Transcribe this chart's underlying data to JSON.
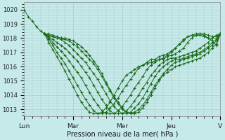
{
  "xlabel": "Pression niveau de la mer( hPa )",
  "xtick_labels": [
    "Lun",
    "Mar",
    "Mer",
    "Jeu",
    "V"
  ],
  "ytick_labels": [
    1013,
    1014,
    1015,
    1016,
    1017,
    1018,
    1019,
    1020
  ],
  "ylim": [
    1012.5,
    1020.5
  ],
  "xlim": [
    0,
    192
  ],
  "bg_color": "#c6eaea",
  "grid_color": "#a8cccc",
  "line_color": "#1a6b1a",
  "marker_color": "#1a6b1a",
  "xtick_positions": [
    0,
    48,
    96,
    144,
    192
  ],
  "series": [
    {
      "points": [
        [
          0,
          1020.0
        ],
        [
          4,
          1019.5
        ],
        [
          8,
          1019.2
        ],
        [
          12,
          1018.8
        ],
        [
          16,
          1018.5
        ],
        [
          20,
          1018.3
        ],
        [
          24,
          1018.2
        ],
        [
          28,
          1018.1
        ],
        [
          32,
          1018.0
        ],
        [
          36,
          1018.0
        ],
        [
          40,
          1018.0
        ],
        [
          44,
          1017.9
        ],
        [
          48,
          1017.8
        ],
        [
          52,
          1017.6
        ],
        [
          56,
          1017.4
        ],
        [
          60,
          1017.1
        ],
        [
          64,
          1016.8
        ],
        [
          68,
          1016.4
        ],
        [
          72,
          1016.0
        ],
        [
          76,
          1015.5
        ],
        [
          80,
          1014.9
        ],
        [
          84,
          1014.4
        ],
        [
          88,
          1013.9
        ],
        [
          92,
          1013.5
        ],
        [
          96,
          1013.1
        ],
        [
          100,
          1012.8
        ],
        [
          104,
          1012.7
        ],
        [
          108,
          1012.7
        ],
        [
          112,
          1012.8
        ],
        [
          116,
          1013.1
        ],
        [
          120,
          1013.5
        ],
        [
          124,
          1014.0
        ],
        [
          128,
          1014.5
        ],
        [
          132,
          1015.0
        ],
        [
          136,
          1015.4
        ],
        [
          140,
          1015.6
        ],
        [
          144,
          1015.8
        ],
        [
          148,
          1016.0
        ],
        [
          152,
          1016.1
        ],
        [
          156,
          1016.2
        ],
        [
          160,
          1016.3
        ],
        [
          164,
          1016.4
        ],
        [
          168,
          1016.5
        ],
        [
          172,
          1016.6
        ],
        [
          176,
          1016.8
        ],
        [
          180,
          1017.0
        ],
        [
          184,
          1017.3
        ],
        [
          188,
          1017.6
        ],
        [
          192,
          1018.3
        ]
      ]
    },
    {
      "points": [
        [
          20,
          1018.3
        ],
        [
          24,
          1018.3
        ],
        [
          28,
          1018.2
        ],
        [
          32,
          1018.1
        ],
        [
          36,
          1018.0
        ],
        [
          40,
          1017.9
        ],
        [
          44,
          1017.8
        ],
        [
          48,
          1017.6
        ],
        [
          52,
          1017.4
        ],
        [
          56,
          1017.1
        ],
        [
          60,
          1016.8
        ],
        [
          64,
          1016.5
        ],
        [
          68,
          1016.2
        ],
        [
          72,
          1015.8
        ],
        [
          76,
          1015.3
        ],
        [
          80,
          1014.8
        ],
        [
          84,
          1014.3
        ],
        [
          88,
          1013.8
        ],
        [
          92,
          1013.4
        ],
        [
          96,
          1013.0
        ],
        [
          100,
          1012.8
        ],
        [
          104,
          1012.7
        ],
        [
          108,
          1012.8
        ],
        [
          112,
          1013.0
        ],
        [
          116,
          1013.3
        ],
        [
          120,
          1013.7
        ],
        [
          124,
          1014.2
        ],
        [
          128,
          1014.7
        ],
        [
          132,
          1015.1
        ],
        [
          136,
          1015.5
        ],
        [
          140,
          1015.8
        ],
        [
          144,
          1016.1
        ],
        [
          148,
          1016.3
        ],
        [
          152,
          1016.4
        ],
        [
          156,
          1016.5
        ],
        [
          160,
          1016.6
        ],
        [
          164,
          1016.7
        ],
        [
          168,
          1016.8
        ],
        [
          172,
          1016.9
        ],
        [
          176,
          1017.1
        ],
        [
          180,
          1017.3
        ],
        [
          184,
          1017.5
        ],
        [
          188,
          1017.8
        ],
        [
          192,
          1018.3
        ]
      ]
    },
    {
      "points": [
        [
          20,
          1018.3
        ],
        [
          24,
          1018.2
        ],
        [
          28,
          1018.1
        ],
        [
          32,
          1018.0
        ],
        [
          36,
          1017.9
        ],
        [
          40,
          1017.7
        ],
        [
          44,
          1017.5
        ],
        [
          48,
          1017.2
        ],
        [
          52,
          1016.9
        ],
        [
          56,
          1016.6
        ],
        [
          60,
          1016.3
        ],
        [
          64,
          1015.9
        ],
        [
          68,
          1015.5
        ],
        [
          72,
          1015.1
        ],
        [
          76,
          1014.6
        ],
        [
          80,
          1014.1
        ],
        [
          84,
          1013.6
        ],
        [
          88,
          1013.2
        ],
        [
          92,
          1012.9
        ],
        [
          96,
          1012.7
        ],
        [
          100,
          1012.7
        ],
        [
          104,
          1012.8
        ],
        [
          108,
          1013.1
        ],
        [
          112,
          1013.4
        ],
        [
          116,
          1013.8
        ],
        [
          120,
          1014.3
        ],
        [
          124,
          1014.8
        ],
        [
          128,
          1015.3
        ],
        [
          132,
          1015.7
        ],
        [
          136,
          1016.0
        ],
        [
          140,
          1016.2
        ],
        [
          144,
          1016.4
        ],
        [
          148,
          1016.5
        ],
        [
          152,
          1016.5
        ],
        [
          156,
          1016.6
        ],
        [
          160,
          1016.7
        ],
        [
          164,
          1016.8
        ],
        [
          168,
          1016.9
        ],
        [
          172,
          1017.0
        ],
        [
          176,
          1017.2
        ],
        [
          180,
          1017.4
        ],
        [
          184,
          1017.7
        ],
        [
          188,
          1017.9
        ],
        [
          192,
          1018.3
        ]
      ]
    },
    {
      "points": [
        [
          20,
          1018.3
        ],
        [
          24,
          1018.1
        ],
        [
          28,
          1017.9
        ],
        [
          32,
          1017.7
        ],
        [
          36,
          1017.5
        ],
        [
          40,
          1017.3
        ],
        [
          44,
          1017.0
        ],
        [
          48,
          1016.7
        ],
        [
          52,
          1016.4
        ],
        [
          56,
          1016.0
        ],
        [
          60,
          1015.6
        ],
        [
          64,
          1015.2
        ],
        [
          68,
          1014.7
        ],
        [
          72,
          1014.2
        ],
        [
          76,
          1013.7
        ],
        [
          80,
          1013.3
        ],
        [
          84,
          1012.9
        ],
        [
          88,
          1012.7
        ],
        [
          92,
          1012.7
        ],
        [
          96,
          1012.7
        ],
        [
          100,
          1012.9
        ],
        [
          104,
          1013.2
        ],
        [
          108,
          1013.6
        ],
        [
          112,
          1014.0
        ],
        [
          116,
          1014.5
        ],
        [
          120,
          1014.9
        ],
        [
          124,
          1015.4
        ],
        [
          128,
          1015.7
        ],
        [
          132,
          1016.1
        ],
        [
          136,
          1016.3
        ],
        [
          140,
          1016.5
        ],
        [
          144,
          1016.6
        ],
        [
          148,
          1016.6
        ],
        [
          152,
          1016.7
        ],
        [
          156,
          1016.8
        ],
        [
          160,
          1016.9
        ],
        [
          164,
          1017.0
        ],
        [
          168,
          1017.1
        ],
        [
          172,
          1017.3
        ],
        [
          176,
          1017.5
        ],
        [
          180,
          1017.7
        ],
        [
          184,
          1018.0
        ],
        [
          188,
          1018.2
        ],
        [
          192,
          1018.3
        ]
      ]
    },
    {
      "points": [
        [
          20,
          1018.3
        ],
        [
          24,
          1018.0
        ],
        [
          28,
          1017.7
        ],
        [
          32,
          1017.4
        ],
        [
          36,
          1017.1
        ],
        [
          40,
          1016.8
        ],
        [
          44,
          1016.4
        ],
        [
          48,
          1016.0
        ],
        [
          52,
          1015.6
        ],
        [
          56,
          1015.2
        ],
        [
          60,
          1014.7
        ],
        [
          64,
          1014.2
        ],
        [
          68,
          1013.7
        ],
        [
          72,
          1013.3
        ],
        [
          76,
          1012.9
        ],
        [
          80,
          1012.7
        ],
        [
          84,
          1012.7
        ],
        [
          88,
          1012.7
        ],
        [
          92,
          1012.9
        ],
        [
          96,
          1013.2
        ],
        [
          100,
          1013.6
        ],
        [
          104,
          1014.0
        ],
        [
          108,
          1014.5
        ],
        [
          112,
          1014.9
        ],
        [
          116,
          1015.3
        ],
        [
          120,
          1015.8
        ],
        [
          124,
          1016.1
        ],
        [
          128,
          1016.3
        ],
        [
          132,
          1016.5
        ],
        [
          136,
          1016.5
        ],
        [
          140,
          1016.7
        ],
        [
          144,
          1016.8
        ],
        [
          148,
          1016.9
        ],
        [
          152,
          1017.1
        ],
        [
          156,
          1017.3
        ],
        [
          160,
          1017.7
        ],
        [
          164,
          1018.0
        ],
        [
          168,
          1018.2
        ],
        [
          172,
          1018.3
        ],
        [
          176,
          1018.3
        ],
        [
          180,
          1018.2
        ],
        [
          184,
          1018.1
        ],
        [
          188,
          1018.1
        ],
        [
          192,
          1018.3
        ]
      ]
    },
    {
      "points": [
        [
          20,
          1018.3
        ],
        [
          24,
          1017.9
        ],
        [
          28,
          1017.5
        ],
        [
          32,
          1017.0
        ],
        [
          36,
          1016.6
        ],
        [
          40,
          1016.2
        ],
        [
          44,
          1015.7
        ],
        [
          48,
          1015.2
        ],
        [
          52,
          1014.7
        ],
        [
          56,
          1014.2
        ],
        [
          60,
          1013.7
        ],
        [
          64,
          1013.3
        ],
        [
          68,
          1012.9
        ],
        [
          72,
          1012.7
        ],
        [
          76,
          1012.7
        ],
        [
          80,
          1012.8
        ],
        [
          84,
          1013.1
        ],
        [
          88,
          1013.4
        ],
        [
          92,
          1013.8
        ],
        [
          96,
          1014.3
        ],
        [
          100,
          1014.7
        ],
        [
          104,
          1015.1
        ],
        [
          108,
          1015.5
        ],
        [
          112,
          1015.9
        ],
        [
          116,
          1016.1
        ],
        [
          120,
          1016.3
        ],
        [
          124,
          1016.5
        ],
        [
          128,
          1016.5
        ],
        [
          132,
          1016.7
        ],
        [
          136,
          1016.8
        ],
        [
          140,
          1016.9
        ],
        [
          144,
          1017.1
        ],
        [
          148,
          1017.3
        ],
        [
          152,
          1017.6
        ],
        [
          156,
          1017.8
        ],
        [
          160,
          1018.1
        ],
        [
          164,
          1018.2
        ],
        [
          168,
          1018.3
        ],
        [
          172,
          1018.3
        ],
        [
          176,
          1018.2
        ],
        [
          180,
          1018.0
        ],
        [
          184,
          1017.8
        ],
        [
          188,
          1017.5
        ],
        [
          192,
          1018.3
        ]
      ]
    },
    {
      "points": [
        [
          20,
          1018.3
        ],
        [
          24,
          1017.7
        ],
        [
          28,
          1017.2
        ],
        [
          32,
          1016.7
        ],
        [
          36,
          1016.2
        ],
        [
          40,
          1015.7
        ],
        [
          44,
          1015.1
        ],
        [
          48,
          1014.6
        ],
        [
          52,
          1014.0
        ],
        [
          56,
          1013.5
        ],
        [
          60,
          1013.1
        ],
        [
          64,
          1012.8
        ],
        [
          68,
          1012.7
        ],
        [
          72,
          1012.7
        ],
        [
          76,
          1012.8
        ],
        [
          80,
          1013.1
        ],
        [
          84,
          1013.5
        ],
        [
          88,
          1014.0
        ],
        [
          92,
          1014.5
        ],
        [
          96,
          1015.0
        ],
        [
          100,
          1015.4
        ],
        [
          104,
          1015.6
        ],
        [
          108,
          1015.8
        ],
        [
          112,
          1016.0
        ],
        [
          116,
          1016.1
        ],
        [
          120,
          1016.2
        ],
        [
          124,
          1016.3
        ],
        [
          128,
          1016.4
        ],
        [
          132,
          1016.5
        ],
        [
          136,
          1016.6
        ],
        [
          140,
          1016.8
        ],
        [
          144,
          1017.0
        ],
        [
          148,
          1017.3
        ],
        [
          152,
          1017.6
        ],
        [
          156,
          1017.9
        ],
        [
          160,
          1018.1
        ],
        [
          164,
          1018.2
        ],
        [
          168,
          1018.2
        ],
        [
          172,
          1018.2
        ],
        [
          176,
          1018.1
        ],
        [
          180,
          1018.0
        ],
        [
          184,
          1018.0
        ],
        [
          188,
          1018.0
        ],
        [
          192,
          1018.3
        ]
      ]
    }
  ]
}
